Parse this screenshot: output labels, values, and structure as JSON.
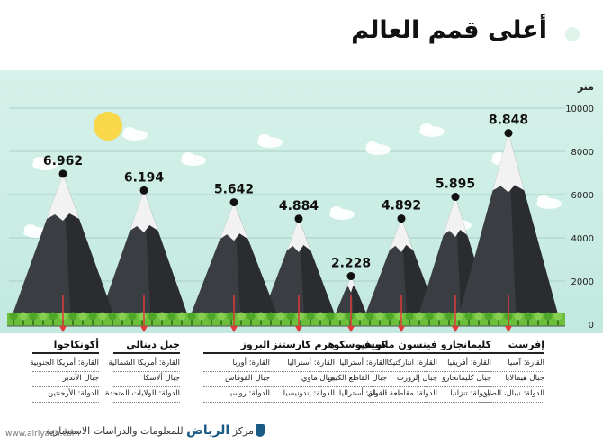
{
  "header": {
    "title": "أعلى قمم العالم"
  },
  "chart_data": {
    "type": "bar",
    "unit_label": "متر",
    "yticks": [
      "10000",
      "8000",
      "6000",
      "4000",
      "2000",
      "0"
    ],
    "ylim": [
      0,
      10000
    ],
    "peaks": [
      {
        "value": 6.962,
        "label": "6.962",
        "name": "أكونكاجوا",
        "continent": "القارة: أمريكا الجنوبية",
        "range": "جبال الأنديز",
        "country": "الدولة: الأرجنتين"
      },
      {
        "value": 6.194,
        "label": "6.194",
        "name": "جبل دينالي",
        "continent": "القارة: أمريكا الشمالية",
        "range": "جبال ألاسكا",
        "country": "الدولة: الولايات المتحدة"
      },
      {
        "value": 5.642,
        "label": "5.642",
        "name": "البروز",
        "continent": "القارة: أوربا",
        "range": "جبال القوقاس",
        "country": "الدولة: روسيا"
      },
      {
        "value": 4.884,
        "label": "4.884",
        "name": "هرم كارستنز",
        "continent": "القارة: أستراليا",
        "range": "جبال ماوي",
        "country": "الدولة: إندونيسيا"
      },
      {
        "value": 2.228,
        "label": "2.228",
        "name": "كوسيوسكو",
        "continent": "القارة: أستراليا",
        "range": "جبال القاطع الكبير",
        "country": "الدولة: أستراليا"
      },
      {
        "value": 4.892,
        "label": "4.892",
        "name": "فينسون ماسيف",
        "continent": "القارة: انتاركتيكا",
        "range": "جبال إلزورث",
        "country": "الدولة: مقاطعة تشيلي"
      },
      {
        "value": 5.895,
        "label": "5.895",
        "name": "كليمانجارو",
        "continent": "القارة: أفريقيا",
        "range": "جبال كليمانجارو",
        "country": "الدولة: تنزانيا"
      },
      {
        "value": 8.848,
        "label": "8.848",
        "name": "إفرست",
        "continent": "القارة: آسيا",
        "range": "جبال هيمالايا",
        "country": "الدولة: نيبال، الصين"
      }
    ]
  },
  "footer": {
    "center_prefix": "مركز",
    "brand": "الرياض",
    "center_suffix": "للمعلومات والدراسات الاستشارية",
    "watermark": "www.alriyadh.com"
  },
  "colors": {
    "sky": "#cdeee6",
    "mountain": "#3a3d42",
    "snow": "#f2f2f2",
    "grass": "#6cbf3b",
    "arrow": "#e03a3a",
    "sun": "#f8d84a"
  }
}
